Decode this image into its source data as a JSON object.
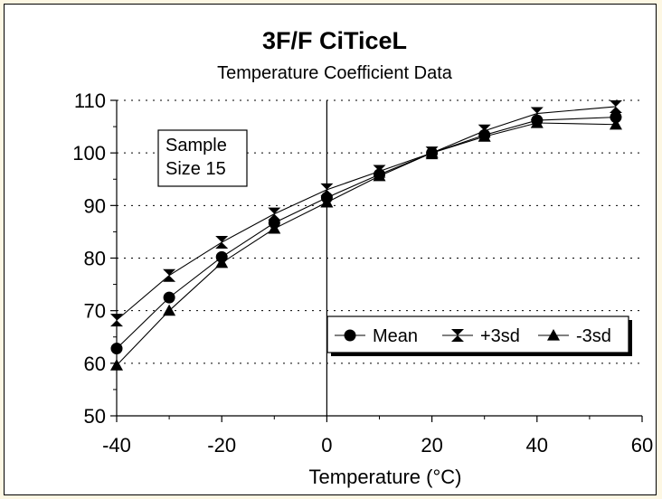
{
  "chart_data": {
    "type": "line",
    "title": "3F/F CiTiceL",
    "subtitle": "Temperature Coefficient Data",
    "xlabel": "Temperature (°C)",
    "ylabel": "",
    "xlim": [
      -40,
      60
    ],
    "ylim": [
      50,
      110
    ],
    "x_ticks": [
      -40,
      -20,
      0,
      20,
      40,
      60
    ],
    "y_ticks": [
      50,
      60,
      70,
      80,
      90,
      100,
      110
    ],
    "grid": "dotted horizontal lines at y ticks",
    "annotation_lines": [
      "Sample",
      "Size 15"
    ],
    "legend_position": "lower-right",
    "x": [
      -40,
      -30,
      -20,
      -10,
      0,
      10,
      20,
      30,
      40,
      55
    ],
    "series": [
      {
        "name": "Mean",
        "marker": "circle",
        "values": [
          62.8,
          72.5,
          80.2,
          86.7,
          91.5,
          95.9,
          100,
          103.4,
          106.2,
          106.8
        ]
      },
      {
        "name": "+3sd",
        "marker": "bowtie",
        "values": [
          68.2,
          76.7,
          83.0,
          88.4,
          93.0,
          96.5,
          100,
          104.2,
          107.5,
          108.8
        ]
      },
      {
        "name": "-3sd",
        "marker": "triangle",
        "values": [
          59.6,
          70.0,
          79.1,
          85.6,
          90.6,
          95.6,
          100,
          103.1,
          105.7,
          105.4
        ]
      }
    ]
  }
}
